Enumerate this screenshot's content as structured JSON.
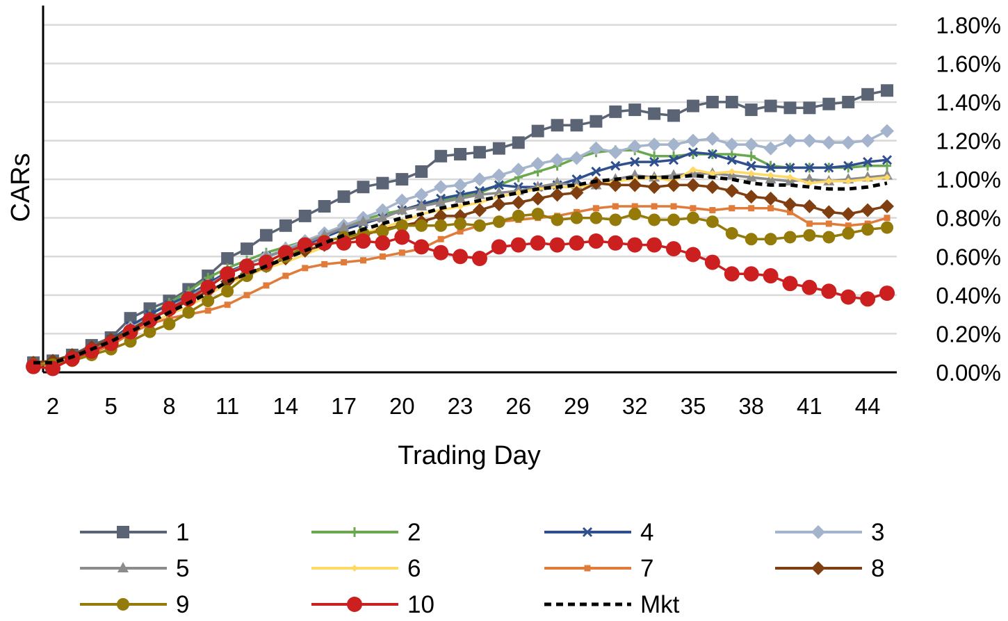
{
  "chart_data": {
    "type": "line",
    "title": "",
    "xlabel": "Trading Day",
    "ylabel": "CARs",
    "x": [
      1,
      2,
      3,
      4,
      5,
      6,
      7,
      8,
      9,
      10,
      11,
      12,
      13,
      14,
      15,
      16,
      17,
      18,
      19,
      20,
      21,
      22,
      23,
      24,
      25,
      26,
      27,
      28,
      29,
      30,
      31,
      32,
      33,
      34,
      35,
      36,
      37,
      38,
      39,
      40,
      41,
      42,
      43,
      44,
      45
    ],
    "xlim": [
      1.5,
      45.5
    ],
    "x_tick_labels": [
      "2",
      "5",
      "8",
      "11",
      "14",
      "17",
      "20",
      "23",
      "26",
      "29",
      "32",
      "35",
      "38",
      "41",
      "44"
    ],
    "x_tick_values": [
      2,
      5,
      8,
      11,
      14,
      17,
      20,
      23,
      26,
      29,
      32,
      35,
      38,
      41,
      44
    ],
    "ylim": [
      0.0,
      1.9
    ],
    "y_tick_labels": [
      "0.00%",
      "0.20%",
      "0.40%",
      "0.60%",
      "0.80%",
      "1.00%",
      "1.20%",
      "1.40%",
      "1.60%",
      "1.80%"
    ],
    "y_tick_values": [
      0.0,
      0.2,
      0.4,
      0.6,
      0.8,
      1.0,
      1.2,
      1.4,
      1.6,
      1.8
    ],
    "y_axis_side": "right",
    "grid": "horizontal",
    "legend_position": "bottom",
    "series": [
      {
        "name": "1",
        "color": "#5b6475",
        "marker": "square",
        "dash": false,
        "values": [
          0.05,
          0.06,
          0.09,
          0.14,
          0.18,
          0.28,
          0.33,
          0.37,
          0.43,
          0.5,
          0.59,
          0.64,
          0.71,
          0.76,
          0.81,
          0.86,
          0.91,
          0.96,
          0.98,
          1.0,
          1.04,
          1.12,
          1.13,
          1.14,
          1.16,
          1.19,
          1.25,
          1.28,
          1.28,
          1.3,
          1.35,
          1.36,
          1.34,
          1.33,
          1.38,
          1.4,
          1.4,
          1.36,
          1.38,
          1.37,
          1.37,
          1.39,
          1.4,
          1.44,
          1.46
        ]
      },
      {
        "name": "2",
        "color": "#6aa84f",
        "marker": "plus",
        "dash": false,
        "values": [
          0.04,
          0.05,
          0.08,
          0.12,
          0.17,
          0.24,
          0.3,
          0.36,
          0.42,
          0.49,
          0.54,
          0.58,
          0.62,
          0.65,
          0.68,
          0.72,
          0.76,
          0.79,
          0.82,
          0.84,
          0.87,
          0.89,
          0.91,
          0.93,
          0.97,
          1.01,
          1.04,
          1.07,
          1.11,
          1.14,
          1.15,
          1.15,
          1.12,
          1.12,
          1.13,
          1.13,
          1.13,
          1.12,
          1.07,
          1.06,
          1.06,
          1.06,
          1.06,
          1.07,
          1.07
        ]
      },
      {
        "name": "4",
        "color": "#2f4f8f",
        "marker": "x",
        "dash": false,
        "values": [
          0.04,
          0.05,
          0.08,
          0.12,
          0.17,
          0.24,
          0.3,
          0.35,
          0.4,
          0.46,
          0.52,
          0.56,
          0.6,
          0.63,
          0.66,
          0.7,
          0.74,
          0.77,
          0.8,
          0.84,
          0.87,
          0.9,
          0.92,
          0.94,
          0.97,
          0.96,
          0.96,
          0.97,
          1.0,
          1.04,
          1.07,
          1.09,
          1.09,
          1.1,
          1.14,
          1.13,
          1.1,
          1.07,
          1.06,
          1.06,
          1.06,
          1.06,
          1.07,
          1.09,
          1.1
        ]
      },
      {
        "name": "3",
        "color": "#a4b4cc",
        "marker": "diamond",
        "dash": false,
        "values": [
          0.04,
          0.05,
          0.08,
          0.12,
          0.16,
          0.23,
          0.28,
          0.33,
          0.39,
          0.45,
          0.51,
          0.56,
          0.6,
          0.64,
          0.68,
          0.72,
          0.76,
          0.8,
          0.84,
          0.89,
          0.92,
          0.96,
          0.97,
          1.0,
          1.02,
          1.05,
          1.08,
          1.1,
          1.11,
          1.16,
          1.14,
          1.17,
          1.18,
          1.18,
          1.2,
          1.21,
          1.18,
          1.18,
          1.16,
          1.2,
          1.2,
          1.19,
          1.19,
          1.2,
          1.25
        ]
      },
      {
        "name": "5",
        "color": "#8c8c8c",
        "marker": "triangle",
        "dash": false,
        "values": [
          0.04,
          0.05,
          0.08,
          0.12,
          0.16,
          0.22,
          0.28,
          0.33,
          0.39,
          0.45,
          0.51,
          0.56,
          0.6,
          0.63,
          0.67,
          0.71,
          0.75,
          0.78,
          0.8,
          0.84,
          0.86,
          0.88,
          0.9,
          0.92,
          0.93,
          0.94,
          0.96,
          0.98,
          0.97,
          0.97,
          1.0,
          1.02,
          1.01,
          1.02,
          1.03,
          1.03,
          1.02,
          1.01,
          1.0,
          0.99,
          1.0,
          0.99,
          1.0,
          1.01,
          1.02
        ]
      },
      {
        "name": "6",
        "color": "#ffd966",
        "marker": "smalldiamond",
        "dash": false,
        "values": [
          0.04,
          0.05,
          0.07,
          0.11,
          0.15,
          0.2,
          0.25,
          0.3,
          0.34,
          0.4,
          0.46,
          0.5,
          0.54,
          0.57,
          0.61,
          0.65,
          0.69,
          0.72,
          0.75,
          0.78,
          0.82,
          0.84,
          0.86,
          0.88,
          0.91,
          0.93,
          0.95,
          0.96,
          0.96,
          0.97,
          0.99,
          1.0,
          1.01,
          0.99,
          1.05,
          1.03,
          1.04,
          1.03,
          1.02,
          1.01,
          0.98,
          0.99,
          0.99,
          1.0,
          1.01
        ]
      },
      {
        "name": "7",
        "color": "#e07b39",
        "marker": "smallsquare",
        "dash": false,
        "values": [
          0.04,
          0.04,
          0.07,
          0.1,
          0.14,
          0.2,
          0.25,
          0.28,
          0.3,
          0.32,
          0.35,
          0.4,
          0.45,
          0.5,
          0.54,
          0.56,
          0.57,
          0.58,
          0.6,
          0.62,
          0.64,
          0.69,
          0.73,
          0.76,
          0.78,
          0.79,
          0.8,
          0.81,
          0.83,
          0.85,
          0.86,
          0.86,
          0.86,
          0.86,
          0.85,
          0.84,
          0.85,
          0.85,
          0.85,
          0.83,
          0.77,
          0.77,
          0.76,
          0.77,
          0.8
        ]
      },
      {
        "name": "8",
        "color": "#7f3f10",
        "marker": "diamond",
        "dash": false,
        "values": [
          0.05,
          0.06,
          0.09,
          0.13,
          0.17,
          0.22,
          0.28,
          0.32,
          0.37,
          0.42,
          0.47,
          0.51,
          0.55,
          0.59,
          0.63,
          0.66,
          0.68,
          0.71,
          0.74,
          0.76,
          0.78,
          0.81,
          0.81,
          0.84,
          0.87,
          0.88,
          0.9,
          0.92,
          0.93,
          0.98,
          0.97,
          0.97,
          0.96,
          0.97,
          0.97,
          0.96,
          0.94,
          0.91,
          0.9,
          0.87,
          0.86,
          0.83,
          0.82,
          0.84,
          0.86
        ]
      },
      {
        "name": "9",
        "color": "#947a09",
        "marker": "circle",
        "dash": false,
        "values": [
          0.04,
          0.04,
          0.06,
          0.09,
          0.12,
          0.16,
          0.21,
          0.25,
          0.31,
          0.37,
          0.42,
          0.5,
          0.55,
          0.6,
          0.65,
          0.68,
          0.7,
          0.72,
          0.73,
          0.76,
          0.76,
          0.76,
          0.77,
          0.76,
          0.78,
          0.81,
          0.82,
          0.79,
          0.8,
          0.8,
          0.79,
          0.82,
          0.79,
          0.79,
          0.8,
          0.78,
          0.72,
          0.69,
          0.69,
          0.7,
          0.71,
          0.7,
          0.72,
          0.74,
          0.75
        ]
      },
      {
        "name": "10",
        "color": "#cc1f1f",
        "marker": "bigcircle",
        "dash": false,
        "values": [
          0.03,
          0.02,
          0.07,
          0.11,
          0.15,
          0.21,
          0.27,
          0.33,
          0.38,
          0.44,
          0.51,
          0.55,
          0.57,
          0.62,
          0.66,
          0.67,
          0.67,
          0.68,
          0.67,
          0.7,
          0.65,
          0.62,
          0.6,
          0.59,
          0.65,
          0.66,
          0.67,
          0.66,
          0.67,
          0.68,
          0.67,
          0.66,
          0.66,
          0.64,
          0.61,
          0.57,
          0.51,
          0.51,
          0.5,
          0.46,
          0.44,
          0.42,
          0.39,
          0.38,
          0.41
        ]
      },
      {
        "name": "Mkt",
        "color": "#000000",
        "marker": "none",
        "dash": true,
        "values": [
          0.05,
          0.05,
          0.08,
          0.12,
          0.16,
          0.21,
          0.26,
          0.31,
          0.36,
          0.41,
          0.47,
          0.51,
          0.55,
          0.59,
          0.63,
          0.67,
          0.71,
          0.74,
          0.77,
          0.8,
          0.82,
          0.85,
          0.87,
          0.89,
          0.91,
          0.93,
          0.95,
          0.96,
          0.97,
          0.99,
          1.0,
          1.01,
          1.01,
          1.01,
          1.02,
          1.01,
          1.0,
          0.98,
          0.97,
          0.97,
          0.96,
          0.95,
          0.95,
          0.96,
          0.98
        ]
      }
    ],
    "legend_order": [
      "1",
      "2",
      "4",
      "3",
      "5",
      "6",
      "7",
      "8",
      "9",
      "10",
      "Mkt"
    ]
  }
}
